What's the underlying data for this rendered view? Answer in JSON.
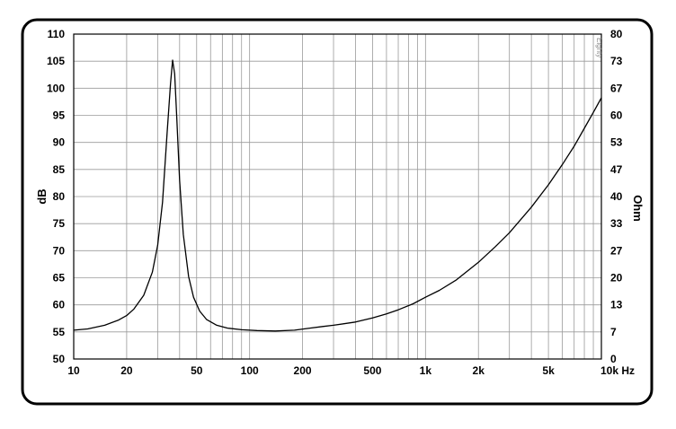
{
  "chart_data": {
    "type": "line",
    "ylabel": "dB",
    "y2label": "Ohm",
    "x_scale": "log",
    "xlim": [
      10,
      10000
    ],
    "ylim": [
      50,
      110
    ],
    "y2lim": [
      0,
      80
    ],
    "grid": true,
    "x_ticks": [
      {
        "value": 10,
        "label": "10"
      },
      {
        "value": 20,
        "label": "20"
      },
      {
        "value": 50,
        "label": "50"
      },
      {
        "value": 100,
        "label": "100"
      },
      {
        "value": 200,
        "label": "200"
      },
      {
        "value": 500,
        "label": "500"
      },
      {
        "value": 1000,
        "label": "1k"
      },
      {
        "value": 2000,
        "label": "2k"
      },
      {
        "value": 5000,
        "label": "5k"
      },
      {
        "value": 10000,
        "label": "10k Hz"
      }
    ],
    "y_ticks": [
      110,
      105,
      100,
      95,
      90,
      85,
      80,
      75,
      70,
      65,
      60,
      55,
      50
    ],
    "y2_ticks": [
      "80",
      "73",
      "67",
      "60",
      "53",
      "47",
      "40",
      "33",
      "27",
      "20",
      "13",
      "7",
      "0"
    ],
    "corner_mark": "Eighty",
    "series": [
      {
        "axis": "y2",
        "color": "#000000",
        "points": [
          [
            10,
            7.1
          ],
          [
            12,
            7.4
          ],
          [
            15,
            8.3
          ],
          [
            18,
            9.6
          ],
          [
            20,
            10.7
          ],
          [
            22,
            12.3
          ],
          [
            25,
            15.7
          ],
          [
            28,
            21.4
          ],
          [
            30,
            28.0
          ],
          [
            32,
            38.6
          ],
          [
            34,
            56.0
          ],
          [
            35.5,
            67.8
          ],
          [
            36.5,
            73.6
          ],
          [
            37.5,
            70.2
          ],
          [
            38.5,
            59.6
          ],
          [
            40,
            44.0
          ],
          [
            42,
            30.7
          ],
          [
            45,
            20.3
          ],
          [
            48,
            15.2
          ],
          [
            52,
            11.8
          ],
          [
            57,
            9.7
          ],
          [
            65,
            8.3
          ],
          [
            75,
            7.6
          ],
          [
            90,
            7.2
          ],
          [
            110,
            7.0
          ],
          [
            140,
            6.9
          ],
          [
            180,
            7.1
          ],
          [
            220,
            7.6
          ],
          [
            260,
            8.0
          ],
          [
            300,
            8.3
          ],
          [
            400,
            9.1
          ],
          [
            500,
            10.1
          ],
          [
            600,
            11.1
          ],
          [
            700,
            12.1
          ],
          [
            850,
            13.6
          ],
          [
            1000,
            15.2
          ],
          [
            1200,
            16.9
          ],
          [
            1500,
            19.5
          ],
          [
            2000,
            23.8
          ],
          [
            2500,
            27.7
          ],
          [
            3000,
            31.1
          ],
          [
            4000,
            37.4
          ],
          [
            5000,
            42.9
          ],
          [
            6000,
            47.9
          ],
          [
            7000,
            52.4
          ],
          [
            8000,
            56.8
          ],
          [
            9000,
            60.7
          ],
          [
            10000,
            64.3
          ]
        ]
      }
    ]
  }
}
